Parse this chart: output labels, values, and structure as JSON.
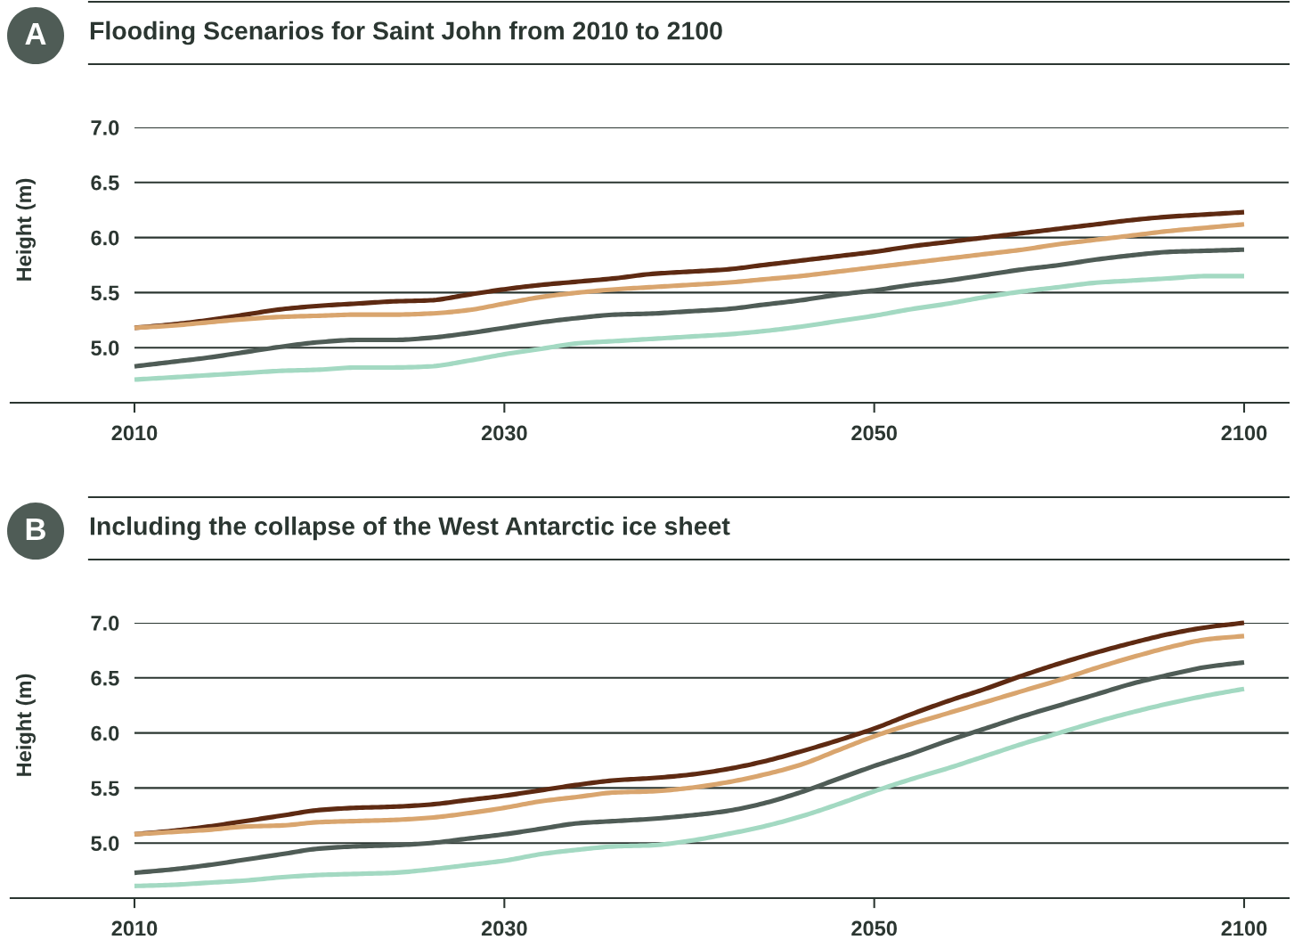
{
  "chart_data": [
    {
      "type": "line",
      "title": "Flooding Scenarios for Saint John from 2010 to 2100",
      "ylabel": "Height (m)",
      "annotations": [
        "A"
      ],
      "categories": [
        "2010",
        null,
        null,
        null,
        null,
        null,
        null,
        null,
        null,
        null,
        "2030",
        null,
        null,
        null,
        null,
        null,
        null,
        null,
        null,
        null,
        "2050",
        null,
        null,
        null,
        null,
        null,
        null,
        null,
        null,
        null,
        "2100"
      ],
      "series": [
        {
          "color": "#5e2a12",
          "values": [
            5.18,
            5.21,
            5.25,
            5.3,
            5.35,
            5.38,
            5.4,
            5.42,
            5.43,
            5.48,
            5.53,
            5.57,
            5.6,
            5.63,
            5.67,
            5.69,
            5.71,
            5.75,
            5.79,
            5.83,
            5.87,
            5.92,
            5.96,
            6.0,
            6.04,
            6.08,
            6.12,
            6.16,
            6.19,
            6.21,
            6.23
          ]
        },
        {
          "color": "#d9a56e",
          "values": [
            5.18,
            5.2,
            5.23,
            5.26,
            5.28,
            5.29,
            5.3,
            5.3,
            5.31,
            5.34,
            5.4,
            5.46,
            5.5,
            5.53,
            5.55,
            5.57,
            5.59,
            5.62,
            5.65,
            5.69,
            5.73,
            5.77,
            5.81,
            5.85,
            5.89,
            5.94,
            5.98,
            6.02,
            6.06,
            6.09,
            6.12
          ]
        },
        {
          "color": "#4f5c56",
          "values": [
            4.83,
            4.87,
            4.91,
            4.96,
            5.01,
            5.05,
            5.07,
            5.07,
            5.09,
            5.13,
            5.18,
            5.23,
            5.27,
            5.3,
            5.31,
            5.33,
            5.35,
            5.39,
            5.43,
            5.48,
            5.52,
            5.57,
            5.61,
            5.66,
            5.71,
            5.75,
            5.8,
            5.84,
            5.87,
            5.88,
            5.89
          ]
        },
        {
          "color": "#a3d9c2",
          "values": [
            4.71,
            4.73,
            4.75,
            4.77,
            4.79,
            4.8,
            4.82,
            4.82,
            4.83,
            4.88,
            4.94,
            4.99,
            5.04,
            5.06,
            5.08,
            5.1,
            5.12,
            5.15,
            5.19,
            5.24,
            5.29,
            5.35,
            5.4,
            5.46,
            5.51,
            5.55,
            5.59,
            5.61,
            5.63,
            5.65,
            5.65
          ]
        }
      ],
      "ylim": [
        4.5,
        7.0
      ],
      "yticks": [
        {
          "value": 5,
          "label": "5.0"
        },
        {
          "value": 5.5,
          "label": "5.5"
        },
        {
          "value": 6,
          "label": "6.0"
        },
        {
          "value": 6.5,
          "label": "6.5"
        },
        {
          "value": 7,
          "label": "7.0"
        }
      ],
      "grid": "y"
    },
    {
      "type": "line",
      "title": "Including the collapse of the West Antarctic ice sheet",
      "ylabel": "Height (m)",
      "annotations": [
        "B"
      ],
      "categories": [
        "2010",
        null,
        null,
        null,
        null,
        null,
        null,
        null,
        null,
        null,
        "2030",
        null,
        null,
        null,
        null,
        null,
        null,
        null,
        null,
        null,
        "2050",
        null,
        null,
        null,
        null,
        null,
        null,
        null,
        null,
        null,
        "2100"
      ],
      "series": [
        {
          "color": "#5e2a12",
          "values": [
            5.08,
            5.11,
            5.15,
            5.2,
            5.25,
            5.3,
            5.32,
            5.33,
            5.35,
            5.39,
            5.43,
            5.48,
            5.53,
            5.57,
            5.59,
            5.62,
            5.67,
            5.74,
            5.83,
            5.93,
            6.04,
            6.17,
            6.29,
            6.4,
            6.52,
            6.63,
            6.73,
            6.82,
            6.9,
            6.96,
            7.0
          ]
        },
        {
          "color": "#d9a56e",
          "values": [
            5.08,
            5.1,
            5.12,
            5.15,
            5.16,
            5.19,
            5.2,
            5.21,
            5.23,
            5.27,
            5.32,
            5.38,
            5.42,
            5.46,
            5.47,
            5.5,
            5.55,
            5.62,
            5.71,
            5.84,
            5.97,
            6.08,
            6.18,
            6.28,
            6.38,
            6.48,
            6.59,
            6.69,
            6.78,
            6.85,
            6.88
          ]
        },
        {
          "color": "#4f5c56",
          "values": [
            4.73,
            4.76,
            4.8,
            4.85,
            4.9,
            4.95,
            4.97,
            4.98,
            5.0,
            5.04,
            5.08,
            5.13,
            5.18,
            5.2,
            5.22,
            5.25,
            5.29,
            5.36,
            5.46,
            5.58,
            5.7,
            5.81,
            5.93,
            6.04,
            6.15,
            6.25,
            6.35,
            6.45,
            6.53,
            6.6,
            6.64
          ]
        },
        {
          "color": "#a3d9c2",
          "values": [
            4.61,
            4.62,
            4.64,
            4.66,
            4.69,
            4.71,
            4.72,
            4.73,
            4.76,
            4.8,
            4.84,
            4.9,
            4.94,
            4.97,
            4.98,
            5.02,
            5.08,
            5.15,
            5.24,
            5.35,
            5.47,
            5.58,
            5.68,
            5.79,
            5.9,
            6.0,
            6.1,
            6.19,
            6.27,
            6.34,
            6.4
          ]
        }
      ],
      "ylim": [
        4.5,
        7.0
      ],
      "yticks": [
        {
          "value": 5,
          "label": "5.0"
        },
        {
          "value": 5.5,
          "label": "5.5"
        },
        {
          "value": 6,
          "label": "6.0"
        },
        {
          "value": 6.5,
          "label": "6.5"
        },
        {
          "value": 7,
          "label": "7.0"
        }
      ],
      "grid": "y"
    }
  ]
}
